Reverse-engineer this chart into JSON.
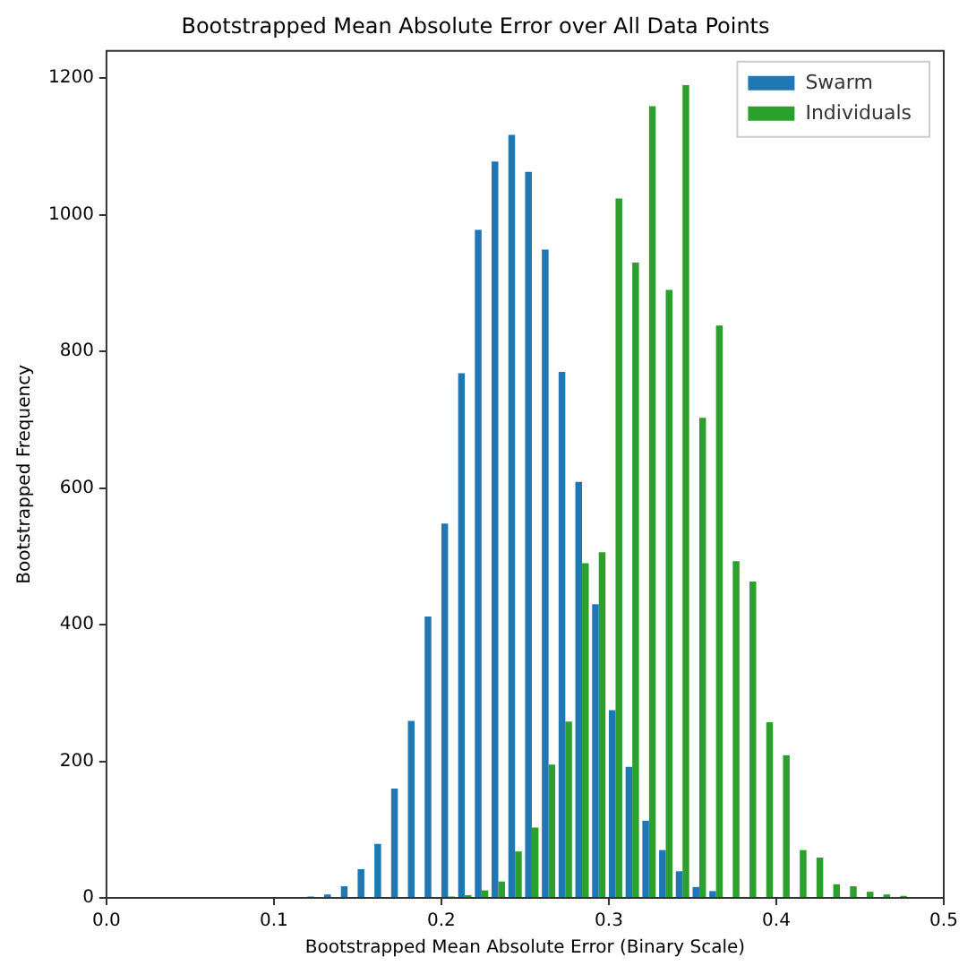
{
  "chart_data": {
    "type": "histogram",
    "title": "Bootstrapped Mean Absolute Error over All Data Points",
    "xlabel": "Bootstrapped Mean Absolute Error (Binary Scale)",
    "ylabel": "Bootstrapped Frequency",
    "bins": [
      0.119,
      0.129,
      0.139,
      0.149,
      0.159,
      0.169,
      0.179,
      0.189,
      0.199,
      0.209,
      0.219,
      0.229,
      0.239,
      0.249,
      0.259,
      0.269,
      0.279,
      0.289,
      0.299,
      0.309,
      0.319,
      0.329,
      0.339,
      0.349,
      0.359,
      0.369,
      0.379,
      0.389,
      0.399,
      0.409,
      0.419,
      0.429,
      0.439,
      0.449,
      0.459,
      0.469,
      0.479
    ],
    "series": [
      {
        "name": "Swarm",
        "color": "#1f77b4",
        "values": [
          2,
          5,
          17,
          42,
          79,
          160,
          259,
          412,
          548,
          768,
          978,
          1078,
          1117,
          1063,
          949,
          770,
          609,
          430,
          275,
          192,
          113,
          70,
          39,
          16,
          10,
          0,
          0,
          0,
          0,
          0,
          0,
          0,
          0,
          0,
          0,
          0
        ]
      },
      {
        "name": "Individuals",
        "color": "#2ca02c",
        "values": [
          0,
          0,
          0,
          0,
          0,
          0,
          0,
          1,
          2,
          4,
          11,
          24,
          68,
          103,
          195,
          258,
          490,
          506,
          1024,
          930,
          1159,
          890,
          1190,
          703,
          838,
          493,
          463,
          257,
          209,
          70,
          59,
          20,
          17,
          9,
          5,
          3
        ]
      }
    ],
    "xlim": [
      0,
      0.5
    ],
    "xticks": [
      {
        "value": 0,
        "label": "0.0"
      },
      {
        "value": 0.1,
        "label": "0.1"
      },
      {
        "value": 0.2,
        "label": "0.2"
      },
      {
        "value": 0.3,
        "label": "0.3"
      },
      {
        "value": 0.4,
        "label": "0.4"
      },
      {
        "value": 0.5,
        "label": "0.5"
      }
    ],
    "ylim": [
      0,
      1240
    ],
    "yticks": [
      0,
      200,
      400,
      600,
      800,
      1000,
      1200
    ],
    "grid": false,
    "legend": "top right"
  }
}
